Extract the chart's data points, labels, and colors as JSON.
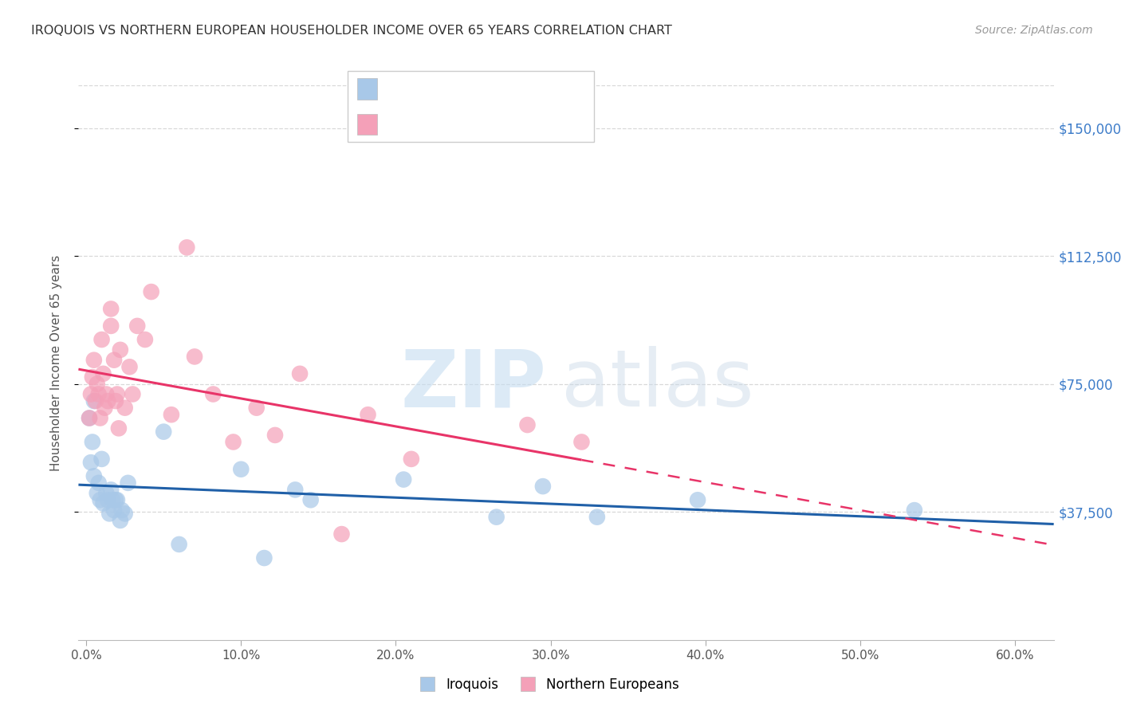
{
  "title": "IROQUOIS VS NORTHERN EUROPEAN HOUSEHOLDER INCOME OVER 65 YEARS CORRELATION CHART",
  "source": "Source: ZipAtlas.com",
  "ylabel": "Householder Income Over 65 years",
  "xlabel_ticks": [
    "0.0%",
    "10.0%",
    "20.0%",
    "30.0%",
    "40.0%",
    "50.0%",
    "60.0%"
  ],
  "xlabel_vals": [
    0.0,
    0.1,
    0.2,
    0.3,
    0.4,
    0.5,
    0.6
  ],
  "ytick_labels": [
    "$37,500",
    "$75,000",
    "$112,500",
    "$150,000"
  ],
  "ytick_vals": [
    37500,
    75000,
    112500,
    150000
  ],
  "ylim": [
    0,
    162500
  ],
  "xlim": [
    -0.005,
    0.625
  ],
  "iroquois_color": "#a8c8e8",
  "northern_color": "#f4a0b8",
  "iroquois_line_color": "#2060a8",
  "northern_line_color": "#e83468",
  "blue_text_color": "#3d7cc9",
  "grid_color": "#d8d8d8",
  "iroquois_x": [
    0.002,
    0.003,
    0.004,
    0.005,
    0.005,
    0.007,
    0.008,
    0.009,
    0.01,
    0.011,
    0.013,
    0.014,
    0.015,
    0.016,
    0.017,
    0.018,
    0.019,
    0.02,
    0.022,
    0.023,
    0.025,
    0.027,
    0.05,
    0.06,
    0.1,
    0.115,
    0.135,
    0.145,
    0.205,
    0.265,
    0.295,
    0.33,
    0.395,
    0.535
  ],
  "iroquois_y": [
    65000,
    52000,
    58000,
    70000,
    48000,
    43000,
    46000,
    41000,
    53000,
    40000,
    43000,
    41000,
    37000,
    44000,
    41000,
    38000,
    41000,
    41000,
    35000,
    38000,
    37000,
    46000,
    61000,
    28000,
    50000,
    24000,
    44000,
    41000,
    47000,
    36000,
    45000,
    36000,
    41000,
    38000
  ],
  "northern_x": [
    0.002,
    0.003,
    0.004,
    0.005,
    0.006,
    0.007,
    0.008,
    0.009,
    0.01,
    0.011,
    0.012,
    0.013,
    0.014,
    0.016,
    0.016,
    0.018,
    0.019,
    0.02,
    0.021,
    0.022,
    0.025,
    0.028,
    0.03,
    0.033,
    0.038,
    0.042,
    0.055,
    0.065,
    0.07,
    0.082,
    0.095,
    0.11,
    0.122,
    0.138,
    0.165,
    0.182,
    0.21,
    0.285,
    0.32
  ],
  "northern_y": [
    65000,
    72000,
    77000,
    82000,
    70000,
    75000,
    72000,
    65000,
    88000,
    78000,
    68000,
    72000,
    70000,
    92000,
    97000,
    82000,
    70000,
    72000,
    62000,
    85000,
    68000,
    80000,
    72000,
    92000,
    88000,
    102000,
    66000,
    115000,
    83000,
    72000,
    58000,
    68000,
    60000,
    78000,
    31000,
    66000,
    53000,
    63000,
    58000
  ]
}
